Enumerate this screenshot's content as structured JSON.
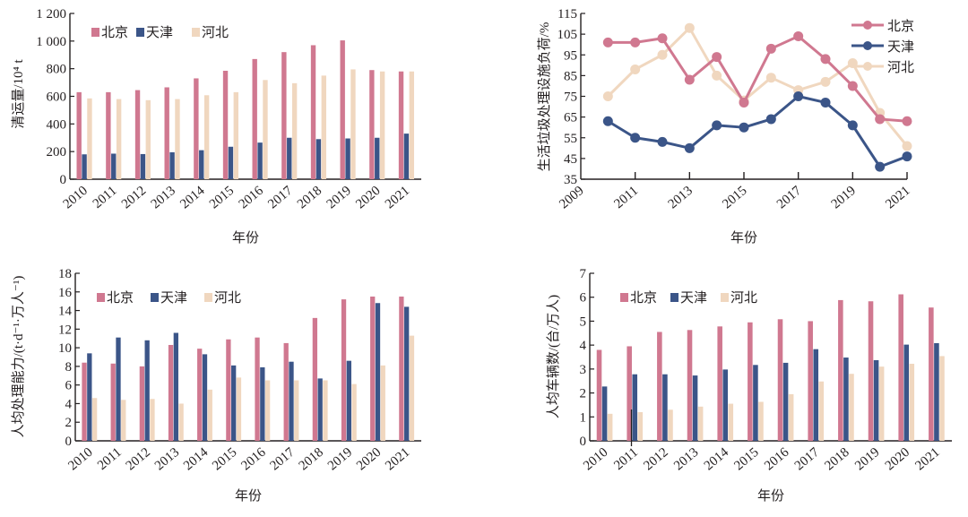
{
  "colors": {
    "beijing": "#d07890",
    "tianjin": "#3b5588",
    "hebei": "#f0d7bf",
    "axis": "#231f20"
  },
  "chart_data": [
    {
      "id": "p1",
      "type": "bar",
      "title": "",
      "xlabel": "年份",
      "ylabel": "清运量/10⁴ t",
      "categories": [
        "2010",
        "2011",
        "2012",
        "2013",
        "2014",
        "2015",
        "2016",
        "2017",
        "2018",
        "2019",
        "2020",
        "2021"
      ],
      "ylim": [
        0,
        1200
      ],
      "yticks": [
        0,
        200,
        400,
        600,
        800,
        1000,
        1200
      ],
      "ytick_labels": [
        "0",
        "200",
        "400",
        "600",
        "800",
        "1 000",
        "1 200"
      ],
      "grid": false,
      "legend": "top-left",
      "series": [
        {
          "name": "北京",
          "color_key": "beijing",
          "values": [
            630,
            630,
            645,
            665,
            730,
            785,
            870,
            920,
            970,
            1005,
            790,
            780
          ]
        },
        {
          "name": "天津",
          "color_key": "tianjin",
          "values": [
            180,
            185,
            182,
            195,
            210,
            235,
            265,
            300,
            290,
            295,
            300,
            330
          ]
        },
        {
          "name": "河北",
          "color_key": "hebei",
          "values": [
            585,
            580,
            572,
            580,
            608,
            630,
            718,
            695,
            750,
            795,
            780,
            780
          ]
        }
      ]
    },
    {
      "id": "p2",
      "type": "line",
      "title": "",
      "xlabel": "年份",
      "ylabel": "生活垃圾处理设施负荷/%",
      "x": [
        2010,
        2011,
        2012,
        2013,
        2014,
        2015,
        2016,
        2017,
        2018,
        2019,
        2020,
        2021
      ],
      "xlim": [
        2009,
        2021
      ],
      "xticks": [
        2009,
        2011,
        2013,
        2015,
        2017,
        2019,
        2021
      ],
      "xtick_labels": [
        "2009",
        "2011",
        "2013",
        "2015",
        "2017",
        "2019",
        "2021"
      ],
      "ylim": [
        35,
        115
      ],
      "yticks": [
        35,
        45,
        55,
        65,
        75,
        85,
        95,
        105,
        115
      ],
      "ytick_labels": [
        "35",
        "45",
        "55",
        "65",
        "75",
        "85",
        "95",
        "105",
        "115"
      ],
      "grid": false,
      "legend": "top-right",
      "series": [
        {
          "name": "北京",
          "color_key": "beijing",
          "values": [
            101,
            101,
            103,
            83,
            94,
            72,
            98,
            104,
            93,
            80,
            64,
            63
          ]
        },
        {
          "name": "天津",
          "color_key": "tianjin",
          "values": [
            63,
            55,
            53,
            50,
            61,
            60,
            64,
            75,
            72,
            61,
            41,
            46
          ]
        },
        {
          "name": "河北",
          "color_key": "hebei",
          "values": [
            75,
            88,
            95,
            108,
            85,
            73,
            84,
            78,
            82,
            91,
            67,
            51
          ]
        }
      ]
    },
    {
      "id": "p3",
      "type": "bar",
      "title": "",
      "xlabel": "年份",
      "ylabel": "人均处理能力/(t·d⁻¹·万人⁻¹)",
      "categories": [
        "2010",
        "2011",
        "2012",
        "2013",
        "2014",
        "2015",
        "2016",
        "2017",
        "2018",
        "2019",
        "2020",
        "2021"
      ],
      "ylim": [
        0,
        18
      ],
      "yticks": [
        0,
        2,
        4,
        6,
        8,
        10,
        12,
        14,
        16,
        18
      ],
      "ytick_labels": [
        "0",
        "2",
        "4",
        "6",
        "8",
        "10",
        "12",
        "14",
        "16",
        "18"
      ],
      "grid": false,
      "legend": "top-left",
      "series": [
        {
          "name": "北京",
          "color_key": "beijing",
          "values": [
            8.4,
            8.3,
            8.0,
            10.3,
            9.9,
            10.9,
            11.1,
            10.5,
            13.2,
            15.2,
            15.5,
            15.5
          ]
        },
        {
          "name": "天津",
          "color_key": "tianjin",
          "values": [
            9.4,
            11.1,
            10.8,
            11.6,
            9.3,
            8.1,
            7.9,
            8.5,
            6.7,
            8.6,
            14.8,
            14.4
          ]
        },
        {
          "name": "河北",
          "color_key": "hebei",
          "values": [
            4.6,
            4.4,
            4.5,
            4.0,
            5.5,
            6.8,
            6.5,
            6.5,
            6.5,
            6.1,
            8.1,
            11.3
          ]
        }
      ]
    },
    {
      "id": "p4",
      "type": "bar",
      "title": "",
      "xlabel": "年份",
      "ylabel": "人均车辆数/(台/万人)",
      "categories": [
        "2010",
        "2011",
        "2012",
        "2013",
        "2014",
        "2015",
        "2016",
        "2017",
        "2018",
        "2019",
        "2020",
        "2021"
      ],
      "ylim": [
        0,
        7
      ],
      "yticks": [
        0,
        1,
        2,
        3,
        4,
        5,
        6,
        7
      ],
      "ytick_labels": [
        "0",
        "1",
        "2",
        "3",
        "4",
        "5",
        "6",
        "7"
      ],
      "grid": false,
      "legend": "top-left",
      "series": [
        {
          "name": "北京",
          "color_key": "beijing",
          "values": [
            3.8,
            3.95,
            4.55,
            4.63,
            4.78,
            4.95,
            5.08,
            5.0,
            5.88,
            5.83,
            6.12,
            5.57
          ]
        },
        {
          "name": "天津",
          "color_key": "tianjin",
          "values": [
            2.27,
            2.78,
            2.78,
            2.73,
            2.98,
            3.17,
            3.26,
            3.83,
            3.48,
            3.37,
            4.02,
            4.08
          ]
        },
        {
          "name": "河北",
          "color_key": "hebei",
          "values": [
            1.13,
            1.2,
            1.3,
            1.43,
            1.55,
            1.63,
            1.95,
            2.48,
            2.8,
            3.1,
            3.22,
            3.54
          ]
        }
      ]
    }
  ]
}
